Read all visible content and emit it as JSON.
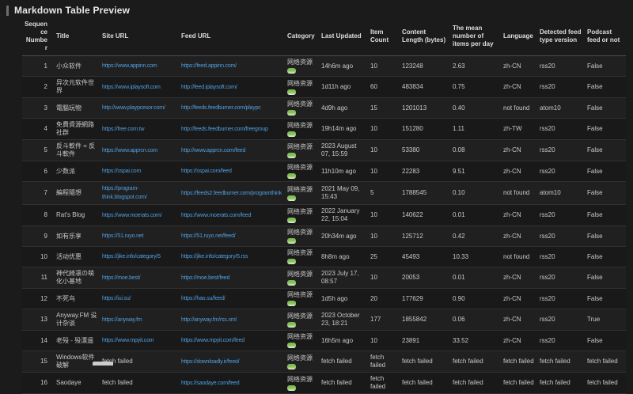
{
  "page": {
    "title": "Markdown Table Preview"
  },
  "colors": {
    "link": "#4f9fe0",
    "tag_green": "#79b84a",
    "background": "#1b1b1b",
    "row_odd": "#202020",
    "row_even": "#191919"
  },
  "icons": {
    "category_status": "green-pill-tag-icon"
  },
  "table": {
    "headers": [
      "Sequence Number",
      "Title",
      "Site URL",
      "Feed URL",
      "Category",
      "Last Updated",
      "Item Count",
      "Content Length (bytes)",
      "The mean number of items per day",
      "Language",
      "Detected feed type version",
      "Podcast feed or not"
    ],
    "rows": [
      {
        "seq": "1",
        "title": "小众软件",
        "site_url": "https://www.appinn.com",
        "feed_url": "https://feed.appinn.com/",
        "category": "网络资源",
        "last_updated": "14h6m ago",
        "item_count": "10",
        "content_length": "123248",
        "mean_per_day": "2.63",
        "language": "zh-CN",
        "feed_type": "rss20",
        "podcast": "False"
      },
      {
        "seq": "2",
        "title": "异次元软件世界",
        "site_url": "https://www.iplaysoft.com",
        "feed_url": "http://feed.iplaysoft.com/",
        "category": "网络资源",
        "last_updated": "1d11h ago",
        "item_count": "60",
        "content_length": "483834",
        "mean_per_day": "0.75",
        "language": "zh-CN",
        "feed_type": "rss20",
        "podcast": "False"
      },
      {
        "seq": "3",
        "title": "電腦玩物",
        "site_url": "http://www.playpcesor.com/",
        "feed_url": "http://feeds.feedburner.com/playpc",
        "category": "网络资源",
        "last_updated": "4d9h ago",
        "item_count": "15",
        "content_length": "1201013",
        "mean_per_day": "0.40",
        "language": "not found",
        "feed_type": "atom10",
        "podcast": "False"
      },
      {
        "seq": "4",
        "title": "免費資源網路社群",
        "site_url": "https://free.com.tw",
        "feed_url": "http://feeds.feedburner.com/freegroup",
        "category": "网络资源",
        "last_updated": "19h14m ago",
        "item_count": "10",
        "content_length": "151280",
        "mean_per_day": "1.11",
        "language": "zh-TW",
        "feed_type": "rss20",
        "podcast": "False"
      },
      {
        "seq": "5",
        "title": "反斗軟件 = 反斗軟件",
        "site_url": "https://www.apprcn.com",
        "feed_url": "http://www.apprcn.com/feed",
        "category": "网络资源",
        "last_updated": "2023 August 07, 15:59",
        "item_count": "10",
        "content_length": "53380",
        "mean_per_day": "0.08",
        "language": "zh-CN",
        "feed_type": "rss20",
        "podcast": "False"
      },
      {
        "seq": "6",
        "title": "少数派",
        "site_url": "https://sspai.com",
        "feed_url": "https://sspai.com/feed",
        "category": "网络资源",
        "last_updated": "11h10m ago",
        "item_count": "10",
        "content_length": "22283",
        "mean_per_day": "9.51",
        "language": "zh-CN",
        "feed_type": "rss20",
        "podcast": "False"
      },
      {
        "seq": "7",
        "title": "編程隨想",
        "site_url": "https://program-think.blogspot.com/",
        "feed_url": "https://feeds2.feedburner.com/programthink",
        "category": "网络资源",
        "last_updated": "2021 May 09, 15:43",
        "item_count": "5",
        "content_length": "1788545",
        "mean_per_day": "0.10",
        "language": "not found",
        "feed_type": "atom10",
        "podcast": "False"
      },
      {
        "seq": "8",
        "title": "Rat's Blog",
        "site_url": "https://www.moerats.com/",
        "feed_url": "https://www.moerats.com/feed",
        "category": "网络资源",
        "last_updated": "2022 January 22, 15:04",
        "item_count": "10",
        "content_length": "140622",
        "mean_per_day": "0.01",
        "language": "zh-CN",
        "feed_type": "rss20",
        "podcast": "False"
      },
      {
        "seq": "9",
        "title": "如有乐享",
        "site_url": "https://51.ruyo.net",
        "feed_url": "https://51.ruyo.net/feed/",
        "category": "网络资源",
        "last_updated": "20h34m ago",
        "item_count": "10",
        "content_length": "125712",
        "mean_per_day": "0.42",
        "language": "zh-CN",
        "feed_type": "rss20",
        "podcast": "False"
      },
      {
        "seq": "10",
        "title": "活动优惠",
        "site_url": "https://jike.info/category/5",
        "feed_url": "https://jike.info/category/5.rss",
        "category": "网络资源",
        "last_updated": "8h8m ago",
        "item_count": "25",
        "content_length": "45493",
        "mean_per_day": "10.33",
        "language": "not found",
        "feed_type": "rss20",
        "podcast": "False"
      },
      {
        "seq": "11",
        "title": "神代綺凛の萌化小基地",
        "site_url": "https://moe.best/",
        "feed_url": "https://moe.best/feed",
        "category": "网络资源",
        "last_updated": "2023 July 17, 08:57",
        "item_count": "10",
        "content_length": "20053",
        "mean_per_day": "0.01",
        "language": "zh-CN",
        "feed_type": "rss20",
        "podcast": "False"
      },
      {
        "seq": "12",
        "title": "不死鸟",
        "site_url": "https://iui.su/",
        "feed_url": "https://hao.su/feed/",
        "category": "网络资源",
        "last_updated": "1d5h ago",
        "item_count": "20",
        "content_length": "177629",
        "mean_per_day": "0.90",
        "language": "zh-CN",
        "feed_type": "rss20",
        "podcast": "False"
      },
      {
        "seq": "13",
        "title": "Anyway.FM 设计杂谈",
        "site_url": "https://anyway.fm",
        "feed_url": "http://anyway.fm/rss.xml",
        "category": "网络资源",
        "last_updated": "2023 October 23, 18:21",
        "item_count": "177",
        "content_length": "1855842",
        "mean_per_day": "0.06",
        "language": "zh-CN",
        "feed_type": "rss20",
        "podcast": "True"
      },
      {
        "seq": "14",
        "title": "老殁 - 殁漂遥",
        "site_url": "https://www.mpyit.com",
        "feed_url": "https://www.mpyit.com/feed",
        "category": "网络资源",
        "last_updated": "16h5m ago",
        "item_count": "10",
        "content_length": "23891",
        "mean_per_day": "33.52",
        "language": "zh-CN",
        "feed_type": "rss20",
        "podcast": "False"
      },
      {
        "seq": "15",
        "title": "Windows软件破解",
        "site_url": "fetch failed",
        "feed_url": "https://downloadly.ir/feed/",
        "category": "网络资源",
        "last_updated": "fetch failed",
        "item_count": "fetch failed",
        "content_length": "fetch failed",
        "mean_per_day": "fetch failed",
        "language": "fetch failed",
        "feed_type": "fetch failed",
        "podcast": "fetch failed"
      },
      {
        "seq": "16",
        "title": "Saodaye",
        "site_url": "fetch failed",
        "feed_url": "https://saodaye.com/feed",
        "category": "网络资源",
        "last_updated": "fetch failed",
        "item_count": "fetch failed",
        "content_length": "fetch failed",
        "mean_per_day": "fetch failed",
        "language": "fetch failed",
        "feed_type": "fetch failed",
        "podcast": "fetch failed"
      }
    ]
  }
}
